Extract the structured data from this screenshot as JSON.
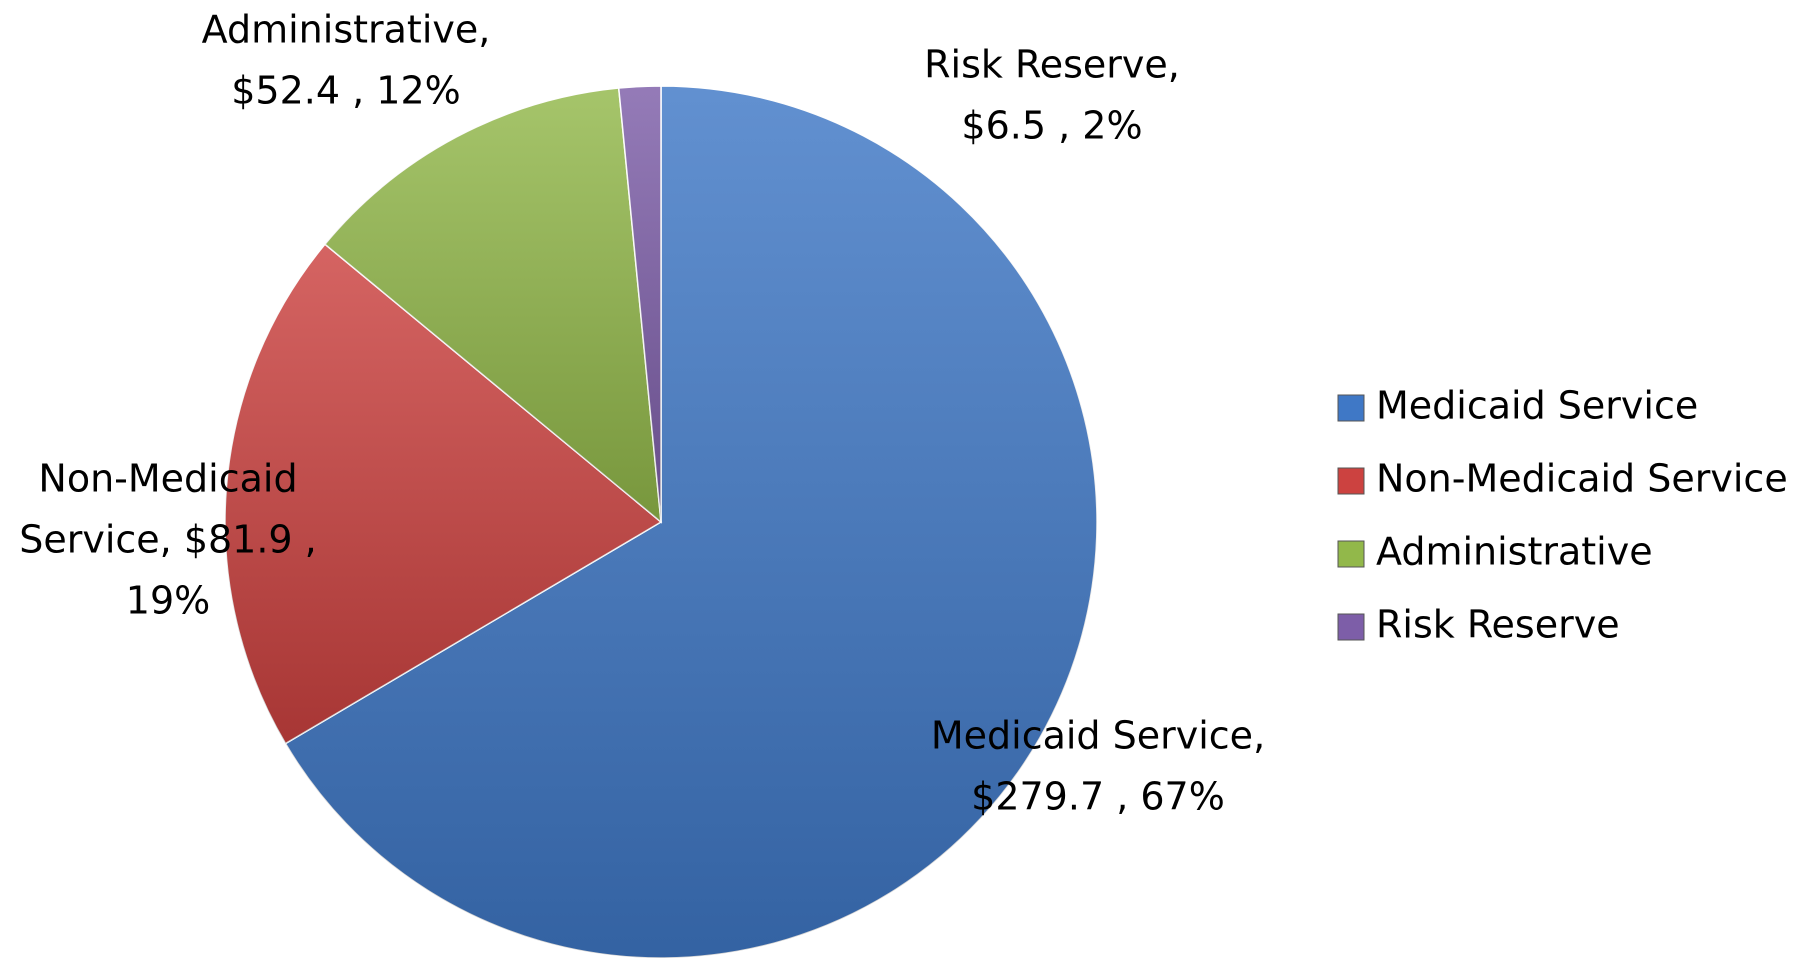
{
  "chart_data": {
    "type": "pie",
    "categories": [
      "Medicaid Service",
      "Non-Medicaid Service",
      "Administrative",
      "Risk Reserve"
    ],
    "values": [
      279.7,
      81.9,
      52.4,
      6.5
    ],
    "colors": [
      "#3f78c6",
      "#cc4240",
      "#92b84a",
      "#7d5ea8"
    ],
    "data_labels": [
      [
        "Medicaid Service,",
        "$279.7 , 67%"
      ],
      [
        "Non-Medicaid",
        "Service,  $81.9 ,",
        "19%"
      ],
      [
        "Administrative,",
        "$52.4 , 12%"
      ],
      [
        "Risk Reserve,",
        "$6.5 , 2%"
      ]
    ],
    "legend": "right"
  }
}
